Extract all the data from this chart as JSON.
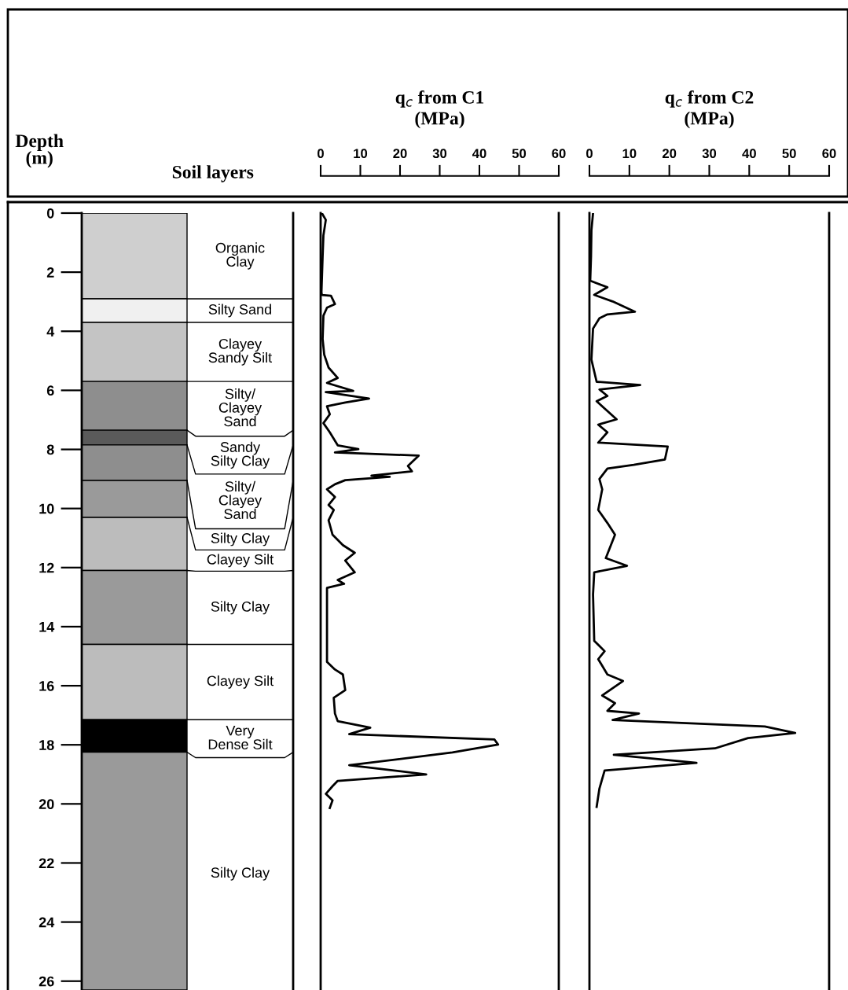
{
  "chart_data": [
    {
      "type": "bar",
      "stacked": true,
      "title": "Soil layers",
      "ylabel": "Depth\n(m)",
      "categories": [
        null
      ],
      "tick_labels": "y",
      "ylim": [
        26.3,
        0
      ],
      "yticks": [
        0,
        2,
        4,
        6,
        8,
        10,
        12,
        14,
        16,
        18,
        20,
        22,
        24,
        26
      ],
      "series": [
        {
          "name": "Organic\nClay",
          "color": "#cfcfcf",
          "values": [
            2.9
          ]
        },
        {
          "name": "Silty Sand",
          "color": "#f0f0f0",
          "values": [
            0.8
          ]
        },
        {
          "name": "Clayey\nSandy Silt",
          "color": "#c4c4c4",
          "values": [
            2.0
          ]
        },
        {
          "name": "Silty/\nClayey\nSand",
          "color": "#8e8e8e",
          "values": [
            1.65
          ]
        },
        {
          "name": "Sandy\nSilty Clay",
          "color": "#5a5a5a",
          "values": [
            0.5
          ]
        },
        {
          "name": "Silty/\nClayey\nSand",
          "color": "#8e8e8e",
          "values": [
            1.2
          ]
        },
        {
          "name": "Silty Clay",
          "color": "#9a9a9a",
          "values": [
            1.25
          ]
        },
        {
          "name": "Clayey Silt",
          "color": "#bcbcbc",
          "values": [
            1.8
          ]
        },
        {
          "name": "Silty Clay",
          "color": "#9a9a9a",
          "values": [
            2.5
          ]
        },
        {
          "name": "Clayey Silt",
          "color": "#bcbcbc",
          "values": [
            2.55
          ]
        },
        {
          "name": "Very\nDense Silt",
          "color": "#000000",
          "values": [
            1.1
          ]
        },
        {
          "name": "Silty Clay",
          "color": "#9a9a9a",
          "values": [
            8.05
          ]
        }
      ]
    },
    {
      "type": "line",
      "title": "q$_{c}$ from C1\n(MPa)",
      "tick_labels": "x",
      "line_style": "solid",
      "xlim": [
        0,
        60
      ],
      "ylim": [
        26.3,
        0
      ],
      "xticks": [
        0,
        10,
        20,
        30,
        40,
        50,
        60
      ],
      "series": [
        {
          "color": "#000000",
          "x": [
            0.3,
            1.3,
            0.7,
            0.5,
            0.2,
            0.3,
            2.6,
            3.6,
            1.6,
            0.7,
            0.5,
            0.9,
            2.0,
            4.3,
            1.6,
            8.2,
            1.3,
            12.2,
            6.2,
            1.6,
            2.3,
            0.7,
            2.3,
            4.3,
            9.5,
            3.6,
            24.7,
            22.0,
            23.0,
            12.8,
            17.4,
            6.2,
            3.6,
            1.6,
            3.6,
            2.0,
            3.3,
            2.0,
            3.0,
            5.6,
            8.6,
            6.2,
            8.6,
            4.3,
            5.9,
            1.6,
            1.6,
            1.6,
            3.6,
            5.6,
            6.2,
            3.3,
            3.6,
            4.3,
            12.5,
            7.2,
            43.8,
            44.7,
            33.2,
            7.2,
            26.6,
            4.3,
            3.0,
            1.3,
            3.0,
            2.3
          ],
          "values": [
            0,
            0.23,
            0.75,
            1.46,
            2.68,
            2.77,
            2.8,
            3.08,
            3.2,
            3.47,
            4.26,
            4.79,
            5.23,
            5.58,
            5.75,
            6.02,
            6.06,
            6.28,
            6.41,
            6.54,
            6.81,
            7.11,
            7.42,
            7.86,
            7.99,
            8.1,
            8.21,
            8.56,
            8.74,
            8.89,
            8.93,
            9.04,
            9.18,
            9.35,
            9.61,
            9.88,
            10.05,
            10.4,
            10.89,
            11.24,
            11.5,
            11.76,
            12.16,
            12.42,
            12.55,
            12.69,
            13.87,
            15.19,
            15.45,
            15.62,
            16.15,
            16.41,
            16.94,
            17.2,
            17.42,
            17.64,
            17.82,
            17.99,
            18.26,
            18.69,
            19.0,
            19.22,
            19.4,
            19.66,
            19.88,
            20.14
          ]
        }
      ]
    },
    {
      "type": "line",
      "title": "q$_{c}$ from C2\n(MPa)",
      "tick_labels": "x",
      "line_style": "solid",
      "xlim": [
        0,
        60
      ],
      "ylim": [
        26.3,
        0
      ],
      "xticks": [
        0,
        10,
        20,
        30,
        40,
        50,
        60
      ],
      "series": [
        {
          "color": "#000000",
          "x": [
            0.9,
            0.5,
            0.4,
            0.2,
            4.5,
            1.2,
            5.8,
            11.4,
            4.5,
            2.5,
            0.9,
            0.5,
            1.8,
            12.7,
            2.5,
            4.5,
            1.8,
            6.8,
            2.2,
            4.5,
            2.2,
            19.6,
            18.9,
            11.1,
            4.5,
            2.5,
            3.2,
            2.2,
            4.5,
            6.4,
            4.1,
            9.4,
            1.2,
            0.9,
            1.2,
            3.8,
            2.2,
            4.5,
            8.4,
            3.2,
            6.4,
            4.5,
            12.4,
            5.8,
            43.9,
            51.5,
            39.7,
            31.4,
            6.1,
            26.8,
            3.8,
            2.5,
            1.8
          ],
          "values": [
            0,
            0.58,
            1.46,
            2.29,
            2.51,
            2.77,
            2.99,
            3.34,
            3.43,
            3.56,
            3.91,
            4.96,
            5.71,
            5.82,
            5.97,
            6.19,
            6.37,
            6.98,
            7.16,
            7.42,
            7.77,
            7.9,
            8.34,
            8.52,
            8.65,
            9.0,
            9.35,
            10.05,
            10.49,
            10.89,
            11.68,
            11.94,
            12.16,
            12.91,
            14.48,
            14.83,
            15.1,
            15.62,
            15.84,
            16.33,
            16.59,
            16.85,
            16.94,
            17.16,
            17.38,
            17.6,
            17.77,
            18.12,
            18.34,
            18.61,
            18.87,
            19.48,
            20.1
          ]
        }
      ]
    }
  ]
}
